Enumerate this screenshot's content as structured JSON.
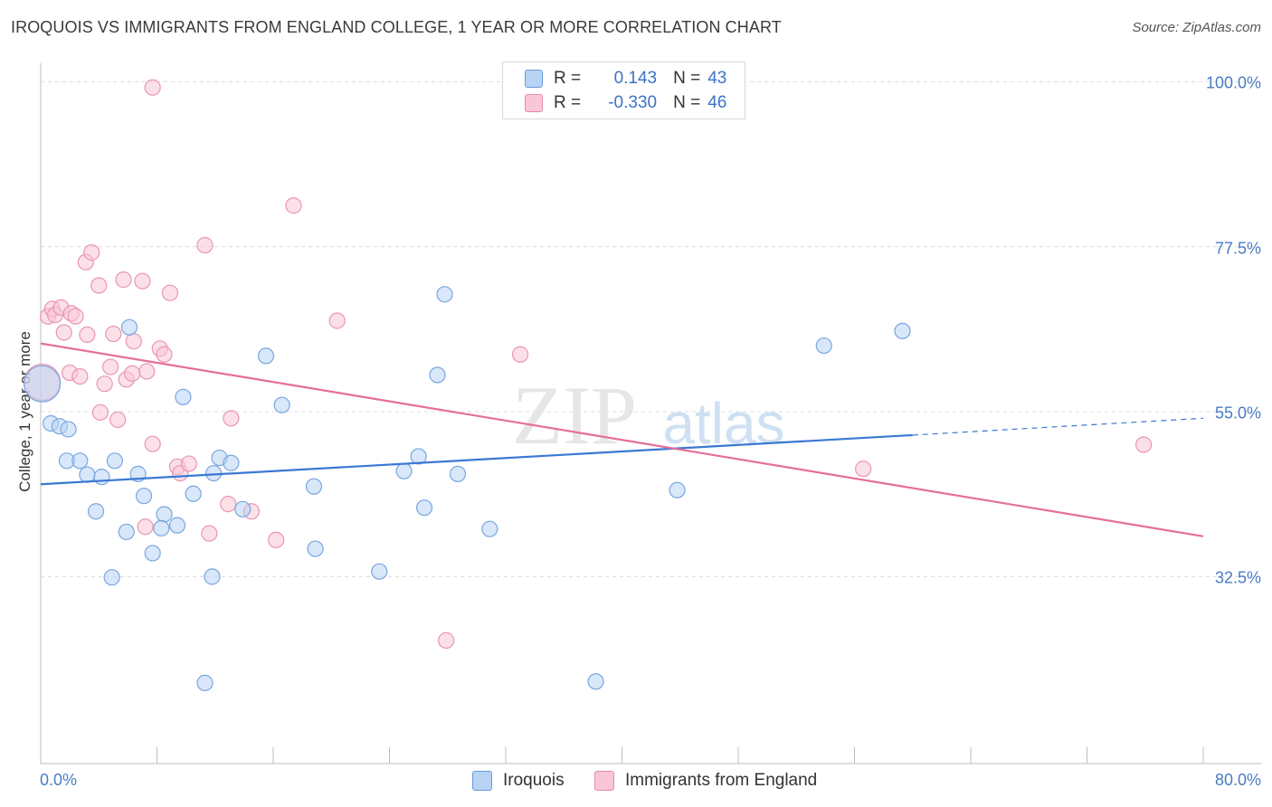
{
  "title": "IROQUOIS VS IMMIGRANTS FROM ENGLAND COLLEGE, 1 YEAR OR MORE CORRELATION CHART",
  "source": "Source: ZipAtlas.com",
  "watermark": {
    "zip": "ZIP",
    "atlas": "atlas"
  },
  "legend": {
    "r_label": "R =",
    "n_label": "N =",
    "rows": [
      {
        "r": "0.143",
        "n": "43"
      },
      {
        "r": "-0.330",
        "n": "46"
      }
    ]
  },
  "bottom_legend": [
    "Iroquois",
    "Immigrants from England"
  ],
  "chart_data": {
    "type": "scatter",
    "title": "IROQUOIS VS IMMIGRANTS FROM ENGLAND COLLEGE, 1 YEAR OR MORE CORRELATION CHART",
    "ylabel": "College, 1 year or more",
    "xlabel": "",
    "xlim": [
      0,
      80
    ],
    "ylim": [
      7.5,
      102.5
    ],
    "x_tick_labels": [
      "0.0%",
      "80.0%"
    ],
    "y_ticks": [
      32.5,
      55.0,
      77.5,
      100.0
    ],
    "y_tick_labels": [
      "32.5%",
      "55.0%",
      "77.5%",
      "100.0%"
    ],
    "colors": {
      "iroquois": "#3a78d4",
      "england": "#e56f98",
      "tick": "#4a7cc4"
    },
    "series": [
      {
        "name": "Iroquois",
        "r": 0.143,
        "n": 43,
        "trend": {
          "x0": 0,
          "y0": 45.1,
          "x1": 60,
          "y1": 51.8,
          "dash_x1": 80,
          "dash_y1": 54.1
        },
        "points": [
          [
            0.1,
            58.8,
            1
          ],
          [
            0.7,
            53.4,
            0
          ],
          [
            1.3,
            53.0,
            0
          ],
          [
            1.9,
            52.6,
            0
          ],
          [
            1.8,
            48.3,
            0
          ],
          [
            2.7,
            48.3,
            0
          ],
          [
            3.2,
            46.4,
            0
          ],
          [
            4.2,
            46.1,
            0
          ],
          [
            3.8,
            41.4,
            0
          ],
          [
            5.1,
            48.3,
            0
          ],
          [
            6.1,
            66.5,
            0
          ],
          [
            6.7,
            46.5,
            0
          ],
          [
            7.1,
            43.5,
            0
          ],
          [
            5.9,
            38.6,
            0
          ],
          [
            8.5,
            41.0,
            0
          ],
          [
            8.3,
            39.1,
            0
          ],
          [
            9.4,
            39.5,
            0
          ],
          [
            7.7,
            35.7,
            0
          ],
          [
            4.9,
            32.4,
            0
          ],
          [
            9.8,
            57.0,
            0
          ],
          [
            10.5,
            43.8,
            0
          ],
          [
            11.9,
            46.6,
            0
          ],
          [
            12.3,
            48.7,
            0
          ],
          [
            13.1,
            48.0,
            0
          ],
          [
            13.9,
            41.7,
            0
          ],
          [
            11.8,
            32.5,
            0
          ],
          [
            11.3,
            18.0,
            0
          ],
          [
            15.5,
            62.6,
            0
          ],
          [
            16.6,
            55.9,
            0
          ],
          [
            18.8,
            44.8,
            0
          ],
          [
            18.9,
            36.3,
            0
          ],
          [
            23.3,
            33.2,
            0
          ],
          [
            25.0,
            46.9,
            0
          ],
          [
            26.0,
            48.9,
            0
          ],
          [
            26.4,
            41.9,
            0
          ],
          [
            27.3,
            60.0,
            0
          ],
          [
            27.8,
            71.0,
            0
          ],
          [
            28.7,
            46.5,
            0
          ],
          [
            30.9,
            39.0,
            0
          ],
          [
            38.2,
            18.2,
            0
          ],
          [
            43.8,
            44.3,
            0
          ],
          [
            53.9,
            64.0,
            0
          ],
          [
            59.3,
            66.0,
            0
          ]
        ]
      },
      {
        "name": "Immigrants from England",
        "r": -0.33,
        "n": 46,
        "trend": {
          "x0": 0,
          "y0": 64.3,
          "x1": 80,
          "y1": 38.0
        },
        "points": [
          [
            0.1,
            59.0,
            1
          ],
          [
            0.5,
            68.0,
            0
          ],
          [
            0.8,
            69.0,
            0
          ],
          [
            1.0,
            68.2,
            0
          ],
          [
            1.4,
            69.2,
            0
          ],
          [
            1.6,
            65.8,
            0
          ],
          [
            2.1,
            68.4,
            0
          ],
          [
            2.4,
            68.0,
            0
          ],
          [
            2.0,
            60.3,
            0
          ],
          [
            2.7,
            59.8,
            0
          ],
          [
            3.1,
            75.4,
            0
          ],
          [
            3.5,
            76.7,
            0
          ],
          [
            3.2,
            65.5,
            0
          ],
          [
            4.0,
            72.2,
            0
          ],
          [
            4.1,
            54.9,
            0
          ],
          [
            4.4,
            58.8,
            0
          ],
          [
            4.8,
            61.1,
            0
          ],
          [
            5.0,
            65.6,
            0
          ],
          [
            5.3,
            53.9,
            0
          ],
          [
            5.7,
            73.0,
            0
          ],
          [
            5.9,
            59.4,
            0
          ],
          [
            6.3,
            60.2,
            0
          ],
          [
            6.4,
            64.6,
            0
          ],
          [
            7.0,
            72.8,
            0
          ],
          [
            7.3,
            60.5,
            0
          ],
          [
            7.7,
            50.6,
            0
          ],
          [
            7.2,
            39.3,
            0
          ],
          [
            8.2,
            63.6,
            0
          ],
          [
            8.5,
            62.8,
            0
          ],
          [
            8.9,
            71.2,
            0
          ],
          [
            9.4,
            47.5,
            0
          ],
          [
            9.6,
            46.6,
            0
          ],
          [
            10.2,
            47.9,
            0
          ],
          [
            7.7,
            99.2,
            0
          ],
          [
            11.3,
            77.7,
            0
          ],
          [
            11.6,
            38.4,
            0
          ],
          [
            12.9,
            42.4,
            0
          ],
          [
            13.1,
            54.1,
            0
          ],
          [
            14.5,
            41.4,
            0
          ],
          [
            16.2,
            37.5,
            0
          ],
          [
            17.4,
            83.1,
            0
          ],
          [
            20.4,
            67.4,
            0
          ],
          [
            27.9,
            23.8,
            0
          ],
          [
            33.0,
            62.8,
            0
          ],
          [
            56.6,
            47.2,
            0
          ],
          [
            75.9,
            50.5,
            0
          ]
        ]
      }
    ]
  }
}
